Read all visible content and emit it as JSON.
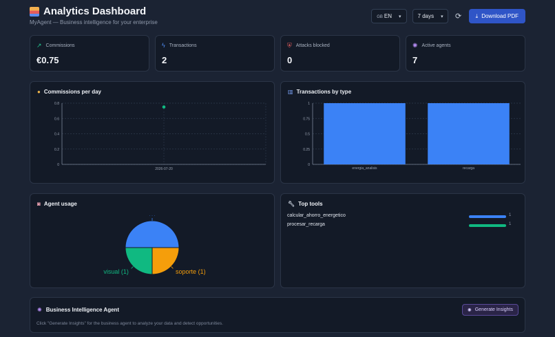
{
  "header": {
    "title": "Analytics Dashboard",
    "subtitle": "MyAgent — Business intelligence for your enterprise",
    "language": "EN",
    "language_flag": "GB",
    "range": "7 days",
    "download_label": "Download PDF"
  },
  "kpis": [
    {
      "label": "Commissions",
      "value": "€0.75",
      "icon": "trending-up-icon",
      "color": "#22c38e"
    },
    {
      "label": "Transactions",
      "value": "2",
      "icon": "lightning-icon",
      "color": "#4f8ef7"
    },
    {
      "label": "Attacks blocked",
      "value": "0",
      "icon": "shield-icon",
      "color": "#e45c5c"
    },
    {
      "label": "Active agents",
      "value": "7",
      "icon": "brain-icon",
      "color": "#b48cf2"
    }
  ],
  "commissions_panel": {
    "title": "Commissions per day",
    "icon": "money-bag-icon"
  },
  "transactions_panel": {
    "title": "Transactions by type",
    "icon": "bar-chart-icon"
  },
  "agent_panel": {
    "title": "Agent usage",
    "icon": "robot-icon"
  },
  "tools_panel": {
    "title": "Top tools",
    "icon": "wrench-icon",
    "tools": [
      {
        "name": "calcular_ahorro_energetico",
        "count": "1",
        "color": "#3b82f6"
      },
      {
        "name": "procesar_recarga",
        "count": "1",
        "color": "#10b981"
      }
    ]
  },
  "bi_panel": {
    "title": "Business Intelligence Agent",
    "icon": "brain-icon",
    "description": "Click \"Generate Insights\" for the business agent to analyze your data and detect opportunities.",
    "button_label": "Generate Insights"
  },
  "chart_data": [
    {
      "type": "scatter",
      "title": "Commissions per day",
      "x": [
        "2026-07-20"
      ],
      "y": [
        0.75
      ],
      "ylim": [
        0,
        0.8
      ],
      "yticks": [
        "0",
        "0.2",
        "0.4",
        "0.6",
        "0.8"
      ],
      "grid": true,
      "color": "#10b981"
    },
    {
      "type": "bar",
      "title": "Transactions by type",
      "categories": [
        "energia_analisis",
        "recarga"
      ],
      "values": [
        1,
        1
      ],
      "ylim": [
        0,
        1
      ],
      "yticks": [
        "0",
        "0.25",
        "0.5",
        "0.75",
        "1"
      ],
      "grid": true,
      "color": "#3b82f6"
    },
    {
      "type": "pie",
      "title": "Agent usage",
      "slices": [
        {
          "label": "",
          "value": 2,
          "color": "#3b82f6"
        },
        {
          "label": "soporte (1)",
          "value": 1,
          "color": "#f59e0b"
        },
        {
          "label": "visual (1)",
          "value": 1,
          "color": "#10b981"
        }
      ]
    }
  ]
}
